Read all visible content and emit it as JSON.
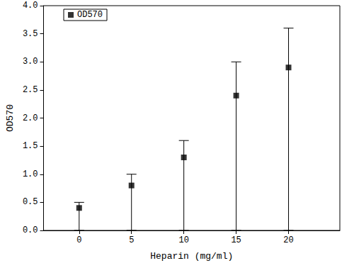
{
  "chart_data": {
    "type": "scatter",
    "x": [
      0,
      5,
      10,
      15,
      20
    ],
    "series": [
      {
        "name": "OD570",
        "color": "#000000",
        "marker": "square",
        "values": [
          0.4,
          0.8,
          1.3,
          2.4,
          2.9
        ],
        "error_low": [
          0,
          0,
          0,
          0,
          0
        ],
        "error_high": [
          0.5,
          1.0,
          1.6,
          3.0,
          3.6
        ]
      }
    ],
    "x_label": "Heparin (mg/ml)",
    "y_label": "OD570",
    "xlim": [
      -3.4,
      24.9
    ],
    "xticks": [
      0,
      5,
      10,
      15,
      20
    ],
    "ylim": [
      0,
      4
    ],
    "yticks": [
      {
        "value": 0,
        "label": "0.0"
      },
      0.5,
      {
        "value": 1,
        "label": "1.0"
      },
      1.5,
      {
        "value": 2,
        "label": "2.0"
      },
      2.5,
      {
        "value": 3,
        "label": "3.0"
      },
      3.5,
      {
        "value": 4,
        "label": "4.0"
      }
    ],
    "grid": false,
    "legend": "upper left"
  }
}
